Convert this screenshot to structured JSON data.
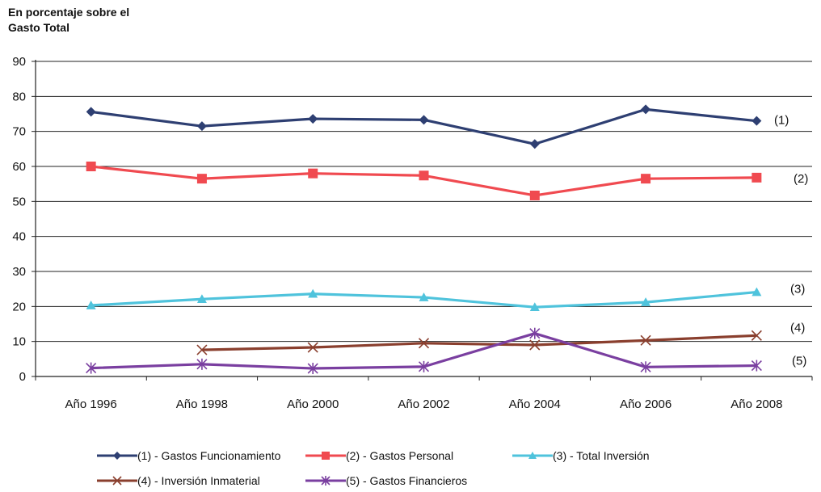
{
  "chart_data": {
    "type": "line",
    "title": "",
    "ylabel_lines": [
      "En porcentaje sobre el",
      "Gasto Total"
    ],
    "xlabel": "",
    "categories": [
      "Año 1996",
      "Año 1998",
      "Año 2000",
      "Año 2002",
      "Año 2004",
      "Año 2006",
      "Año 2008"
    ],
    "ylim": [
      0,
      90
    ],
    "yticks": [
      0,
      10,
      20,
      30,
      40,
      50,
      60,
      70,
      80,
      90
    ],
    "grid": true,
    "legend_position": "bottom",
    "series": [
      {
        "name": "(1) - Gastos Funcionamiento",
        "end_label": "(1)",
        "color": "#2e3f72",
        "marker": "diamond",
        "values": [
          75.6,
          71.5,
          73.6,
          73.3,
          66.4,
          76.3,
          73.0
        ]
      },
      {
        "name": "(2) - Gastos Personal",
        "end_label": "(2)",
        "color": "#f04a50",
        "marker": "square",
        "values": [
          60.0,
          56.5,
          58.0,
          57.4,
          51.7,
          56.5,
          56.8
        ]
      },
      {
        "name": "(3) - Total Inversión",
        "end_label": "(3)",
        "color": "#4fc3dc",
        "marker": "triangle",
        "values": [
          20.3,
          22.1,
          23.6,
          22.6,
          19.8,
          21.2,
          24.1
        ]
      },
      {
        "name": "(4) - Inversión Inmaterial",
        "end_label": "(4)",
        "color": "#8a3f2e",
        "marker": "x",
        "values": [
          null,
          7.6,
          8.3,
          9.5,
          9.0,
          10.3,
          11.7
        ]
      },
      {
        "name": "(5) - Gastos Financieros",
        "end_label": "(5)",
        "color": "#7a3fa0",
        "marker": "asterisk",
        "values": [
          2.4,
          3.5,
          2.3,
          2.8,
          12.3,
          2.7,
          3.1
        ]
      }
    ]
  }
}
